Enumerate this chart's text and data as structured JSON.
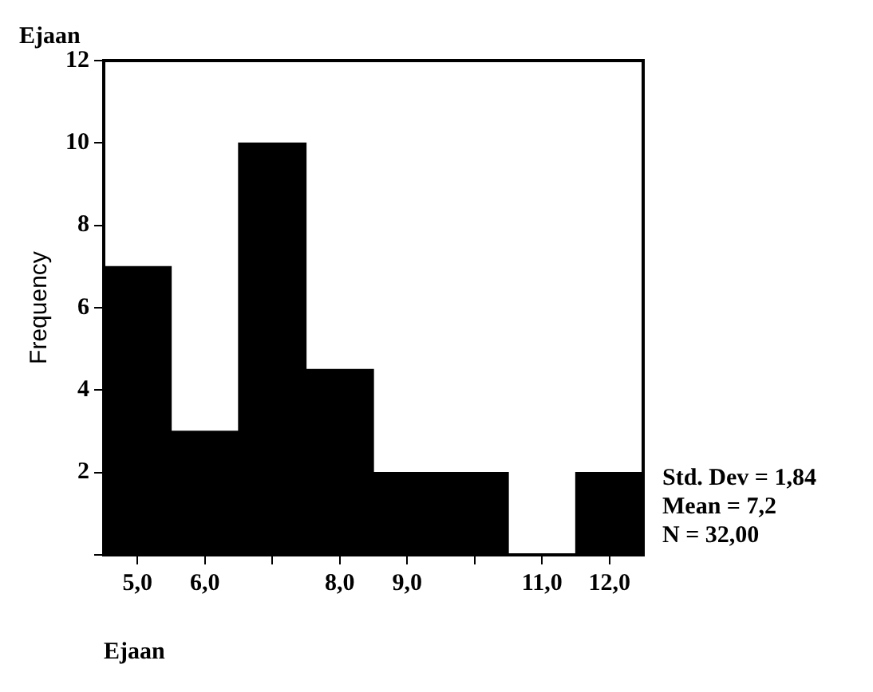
{
  "chart_data": {
    "type": "histogram",
    "title": "Ejaan",
    "xlabel": "Ejaan",
    "ylabel": "Frequency",
    "bins": [
      4.5,
      5.5,
      6.5,
      7.5,
      8.5,
      9.5,
      10.5,
      11.5,
      12.5
    ],
    "values": [
      7,
      3,
      10,
      4.5,
      2,
      2,
      0,
      2
    ],
    "color": "#000000",
    "xlim": [
      4.5,
      12.5
    ],
    "xticks": [
      {
        "value": 5,
        "label": "5,0"
      },
      {
        "value": 6,
        "label": "6,0"
      },
      {
        "value": 7,
        "label": null
      },
      {
        "value": 8,
        "label": "8,0"
      },
      {
        "value": 9,
        "label": "9,0"
      },
      {
        "value": 10,
        "label": null
      },
      {
        "value": 11,
        "label": "11,0"
      },
      {
        "value": 12,
        "label": "12,0"
      }
    ],
    "ylim": [
      0,
      12
    ],
    "yticks": [
      {
        "value": 0,
        "label": null
      },
      2,
      4,
      6,
      8,
      10,
      12
    ],
    "grid": false,
    "legend": false,
    "annotations": [
      "Std. Dev = 1,84",
      "Mean = 7,2",
      "N = 32,00"
    ]
  }
}
